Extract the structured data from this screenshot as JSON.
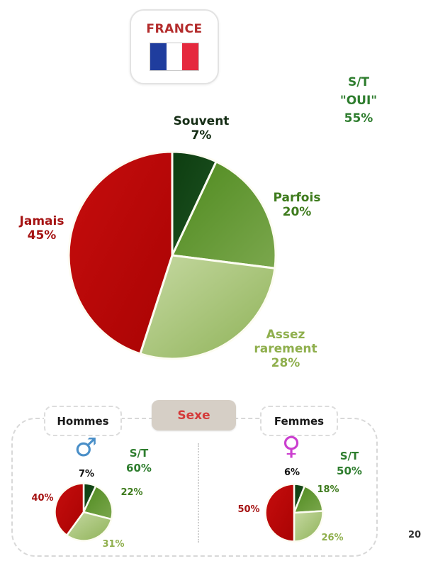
{
  "header": {
    "country_label": "FRANCE",
    "label_color": "#b32b2b",
    "flag": {
      "blue": "#1f3d9e",
      "white": "#ffffff",
      "red": "#e5293e"
    }
  },
  "colors": {
    "label_souvent": "#152d15",
    "label_parfois": "#3e7b1d",
    "label_assez": "#8faf4d",
    "label_jamais": "#a51212",
    "st_green": "#2e7d2e",
    "pct_dark": "#111111",
    "page_number": "#333333",
    "sexe_title": "#d43a3a",
    "male_blue": "#4a8fc8",
    "female_magenta": "#cb3fcf"
  },
  "section_sexe": {
    "title": "Sexe",
    "groups": [
      {
        "label": "Hommes",
        "symbol": "♂"
      },
      {
        "label": "Femmes",
        "symbol": "♀"
      }
    ]
  },
  "page_number": "20",
  "chart_data": [
    {
      "type": "pie",
      "name": "france-total",
      "title": "FRANCE",
      "categories": [
        "Souvent",
        "Parfois",
        "Assez rarement",
        "Jamais"
      ],
      "values": [
        7,
        20,
        28,
        45
      ],
      "start_angle_deg": 0,
      "direction": "clockwise",
      "labels": {
        "souvent": "Souvent\n7%",
        "parfois": "Parfois\n20%",
        "assez": "Assez\nrarement\n28%",
        "jamais": "Jamais\n45%"
      },
      "summary": "S/T\n\"OUI\"\n55%",
      "colors": [
        "#0d3d10",
        "#4e8a1e",
        "#c6d9a2",
        "#c60d0d"
      ],
      "colors_edge": [
        "#1e5322",
        "#7ba74d",
        "#8eb257",
        "#a90303"
      ]
    },
    {
      "type": "pie",
      "name": "hommes",
      "title": "Hommes",
      "categories": [
        "Souvent",
        "Parfois",
        "Assez rarement",
        "Jamais"
      ],
      "values": [
        7,
        22,
        31,
        40
      ],
      "start_angle_deg": 0,
      "direction": "clockwise",
      "labels": {
        "souvent": "7%",
        "parfois": "22%",
        "assez": "31%",
        "jamais": "40%"
      },
      "summary": "S/T\n60%",
      "colors": [
        "#0d3d10",
        "#4e8a1e",
        "#c6d9a2",
        "#c60d0d"
      ],
      "colors_edge": [
        "#1e5322",
        "#7ba74d",
        "#8eb257",
        "#a90303"
      ]
    },
    {
      "type": "pie",
      "name": "femmes",
      "title": "Femmes",
      "categories": [
        "Souvent",
        "Parfois",
        "Assez rarement",
        "Jamais"
      ],
      "values": [
        6,
        18,
        26,
        50
      ],
      "start_angle_deg": 0,
      "direction": "clockwise",
      "labels": {
        "souvent": "6%",
        "parfois": "18%",
        "assez": "26%",
        "jamais": "50%"
      },
      "summary": "S/T\n50%",
      "colors": [
        "#0d3d10",
        "#4e8a1e",
        "#c6d9a2",
        "#c60d0d"
      ],
      "colors_edge": [
        "#1e5322",
        "#7ba74d",
        "#8eb257",
        "#a90303"
      ]
    }
  ]
}
